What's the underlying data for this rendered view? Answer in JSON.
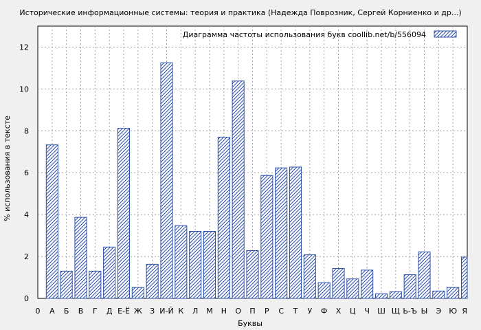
{
  "chart_data": {
    "type": "bar",
    "title": "Исторические информационные системы: теория и практика (Надежда Поврозник, Сергей Корниенко и др...)",
    "xlabel": "Буквы",
    "ylabel": "% использования в тексте",
    "legend": "Диаграмма частоты использования букв  coollib.net/b/556094",
    "legend_position": "top-right",
    "grid": true,
    "ylim": [
      0,
      13
    ],
    "yticks": [
      0,
      2,
      4,
      6,
      8,
      10,
      12
    ],
    "categories": [
      "0",
      "А",
      "Б",
      "В",
      "Г",
      "Д",
      "Е-Ё",
      "Ж",
      "З",
      "И-Й",
      "К",
      "Л",
      "М",
      "Н",
      "О",
      "П",
      "Р",
      "С",
      "Т",
      "У",
      "Ф",
      "Х",
      "Ц",
      "Ч",
      "Ш",
      "Щ",
      "Ь-Ъ",
      "Ы",
      "Э",
      "Ю",
      "Я"
    ],
    "values": [
      0,
      7.33,
      1.3,
      3.87,
      1.3,
      2.45,
      8.12,
      0.52,
      1.63,
      11.25,
      3.47,
      3.2,
      3.2,
      7.7,
      10.38,
      2.28,
      5.87,
      6.23,
      6.27,
      2.08,
      0.75,
      1.43,
      0.93,
      1.35,
      0.22,
      0.32,
      1.13,
      2.22,
      0.35,
      0.52,
      1.97
    ],
    "colors": {
      "bar": "#2a4ea8",
      "grid": "#a0a0a0",
      "plot_bg": "#ffffff",
      "page_bg": "#f0f0f0"
    }
  }
}
